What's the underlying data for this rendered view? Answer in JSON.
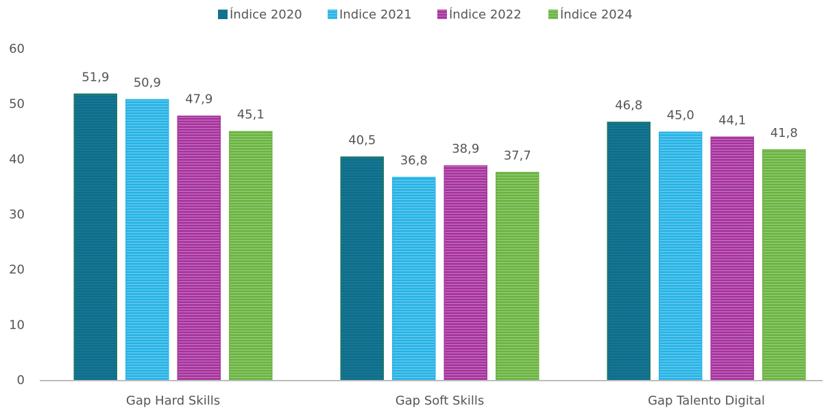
{
  "chart_data": {
    "type": "bar",
    "categories": [
      "Gap Hard Skills",
      "Gap Soft Skills",
      "Gap Talento Digital"
    ],
    "series": [
      {
        "name": "Índice 2020",
        "color": "#0e6f8c",
        "values": [
          51.9,
          40.5,
          46.8
        ],
        "value_labels": [
          "51,9",
          "40,5",
          "46,8"
        ]
      },
      {
        "name": "Indice 2021",
        "color": "#2ab4e6",
        "values": [
          50.9,
          36.8,
          45.0
        ],
        "value_labels": [
          "50,9",
          "36,8",
          "45,0"
        ]
      },
      {
        "name": "Índice 2022",
        "color": "#a8359f",
        "values": [
          47.9,
          38.9,
          44.1
        ],
        "value_labels": [
          "47,9",
          "38,9",
          "44,1"
        ]
      },
      {
        "name": "Índice 2024",
        "color": "#6cb543",
        "values": [
          45.1,
          37.7,
          41.8
        ],
        "value_labels": [
          "45,1",
          "37,7",
          "41,8"
        ]
      }
    ],
    "ylim": [
      0,
      60
    ],
    "yticks": [
      0,
      10,
      20,
      30,
      40,
      50,
      60
    ],
    "grid": false,
    "legend": "top"
  }
}
